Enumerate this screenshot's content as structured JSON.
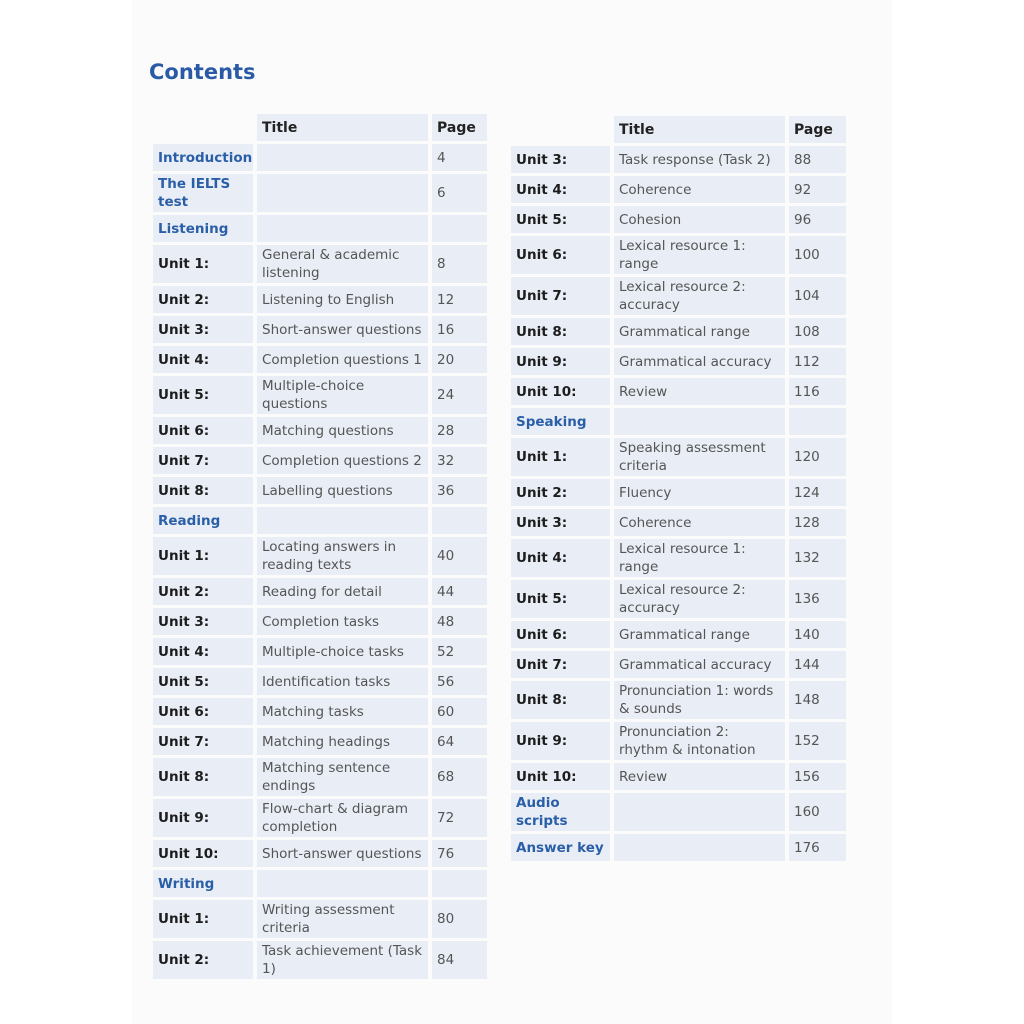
{
  "heading": "Contents",
  "columns": {
    "title": "Title",
    "page": "Page"
  },
  "colors": {
    "heading": "#2a5aa6",
    "cell": "#e9eef6"
  },
  "left": [
    {
      "label": "Introduction",
      "type": "section",
      "title": "",
      "page": "4"
    },
    {
      "label": "The IELTS test",
      "type": "section",
      "title": "",
      "page": "6"
    },
    {
      "label": "Listening",
      "type": "section",
      "title": "",
      "page": ""
    },
    {
      "label": "Unit 1:",
      "type": "unit",
      "title": "General & academic listening",
      "page": "8"
    },
    {
      "label": "Unit 2:",
      "type": "unit",
      "title": "Listening to English",
      "page": "12"
    },
    {
      "label": "Unit 3:",
      "type": "unit",
      "title": "Short-answer questions",
      "page": "16"
    },
    {
      "label": "Unit 4:",
      "type": "unit",
      "title": "Completion questions 1",
      "page": "20"
    },
    {
      "label": "Unit 5:",
      "type": "unit",
      "title": "Multiple-choice questions",
      "page": "24"
    },
    {
      "label": "Unit 6:",
      "type": "unit",
      "title": "Matching questions",
      "page": "28"
    },
    {
      "label": "Unit 7:",
      "type": "unit",
      "title": "Completion questions 2",
      "page": "32"
    },
    {
      "label": "Unit 8:",
      "type": "unit",
      "title": "Labelling questions",
      "page": "36"
    },
    {
      "label": "Reading",
      "type": "section",
      "title": "",
      "page": ""
    },
    {
      "label": "Unit 1:",
      "type": "unit",
      "title": "Locating answers in reading texts",
      "page": "40"
    },
    {
      "label": "Unit 2:",
      "type": "unit",
      "title": "Reading for detail",
      "page": "44"
    },
    {
      "label": "Unit 3:",
      "type": "unit",
      "title": "Completion tasks",
      "page": "48"
    },
    {
      "label": "Unit 4:",
      "type": "unit",
      "title": "Multiple-choice tasks",
      "page": "52"
    },
    {
      "label": "Unit 5:",
      "type": "unit",
      "title": "Identification tasks",
      "page": "56"
    },
    {
      "label": "Unit 6:",
      "type": "unit",
      "title": "Matching tasks",
      "page": "60"
    },
    {
      "label": "Unit 7:",
      "type": "unit",
      "title": "Matching headings",
      "page": "64"
    },
    {
      "label": "Unit 8:",
      "type": "unit",
      "title": "Matching sentence endings",
      "page": "68"
    },
    {
      "label": "Unit 9:",
      "type": "unit",
      "title": "Flow-chart & diagram completion",
      "page": "72"
    },
    {
      "label": "Unit 10:",
      "type": "unit",
      "title": "Short-answer questions",
      "page": "76"
    },
    {
      "label": "Writing",
      "type": "section",
      "title": "",
      "page": ""
    },
    {
      "label": "Unit 1:",
      "type": "unit",
      "title": "Writing assessment criteria",
      "page": "80"
    },
    {
      "label": "Unit 2:",
      "type": "unit",
      "title": "Task achievement (Task 1)",
      "page": "84"
    }
  ],
  "right": [
    {
      "label": "Unit 3:",
      "type": "unit",
      "title": "Task response (Task 2)",
      "page": "88"
    },
    {
      "label": "Unit 4:",
      "type": "unit",
      "title": "Coherence",
      "page": "92"
    },
    {
      "label": "Unit 5:",
      "type": "unit",
      "title": "Cohesion",
      "page": "96"
    },
    {
      "label": "Unit 6:",
      "type": "unit",
      "title": "Lexical resource 1: range",
      "page": "100"
    },
    {
      "label": "Unit 7:",
      "type": "unit",
      "title": "Lexical resource 2: accuracy",
      "page": "104"
    },
    {
      "label": "Unit 8:",
      "type": "unit",
      "title": "Grammatical range",
      "page": "108"
    },
    {
      "label": "Unit 9:",
      "type": "unit",
      "title": "Grammatical accuracy",
      "page": "112"
    },
    {
      "label": "Unit 10:",
      "type": "unit",
      "title": "Review",
      "page": "116"
    },
    {
      "label": "Speaking",
      "type": "section",
      "title": "",
      "page": ""
    },
    {
      "label": "Unit 1:",
      "type": "unit",
      "title": "Speaking assessment criteria",
      "page": "120"
    },
    {
      "label": "Unit 2:",
      "type": "unit",
      "title": "Fluency",
      "page": "124"
    },
    {
      "label": "Unit 3:",
      "type": "unit",
      "title": "Coherence",
      "page": "128"
    },
    {
      "label": "Unit 4:",
      "type": "unit",
      "title": "Lexical resource 1: range",
      "page": "132"
    },
    {
      "label": "Unit 5:",
      "type": "unit",
      "title": "Lexical resource 2: accuracy",
      "page": "136"
    },
    {
      "label": "Unit 6:",
      "type": "unit",
      "title": "Grammatical range",
      "page": "140"
    },
    {
      "label": "Unit 7:",
      "type": "unit",
      "title": "Grammatical accuracy",
      "page": "144"
    },
    {
      "label": "Unit 8:",
      "type": "unit",
      "title": "Pronunciation 1: words & sounds",
      "page": "148"
    },
    {
      "label": "Unit 9:",
      "type": "unit",
      "title": "Pronunciation 2: rhythm & intonation",
      "page": "152"
    },
    {
      "label": "Unit 10:",
      "type": "unit",
      "title": "Review",
      "page": "156"
    },
    {
      "label": "Audio scripts",
      "type": "section",
      "title": "",
      "page": "160"
    },
    {
      "label": "Answer key",
      "type": "section",
      "title": "",
      "page": "176"
    }
  ]
}
